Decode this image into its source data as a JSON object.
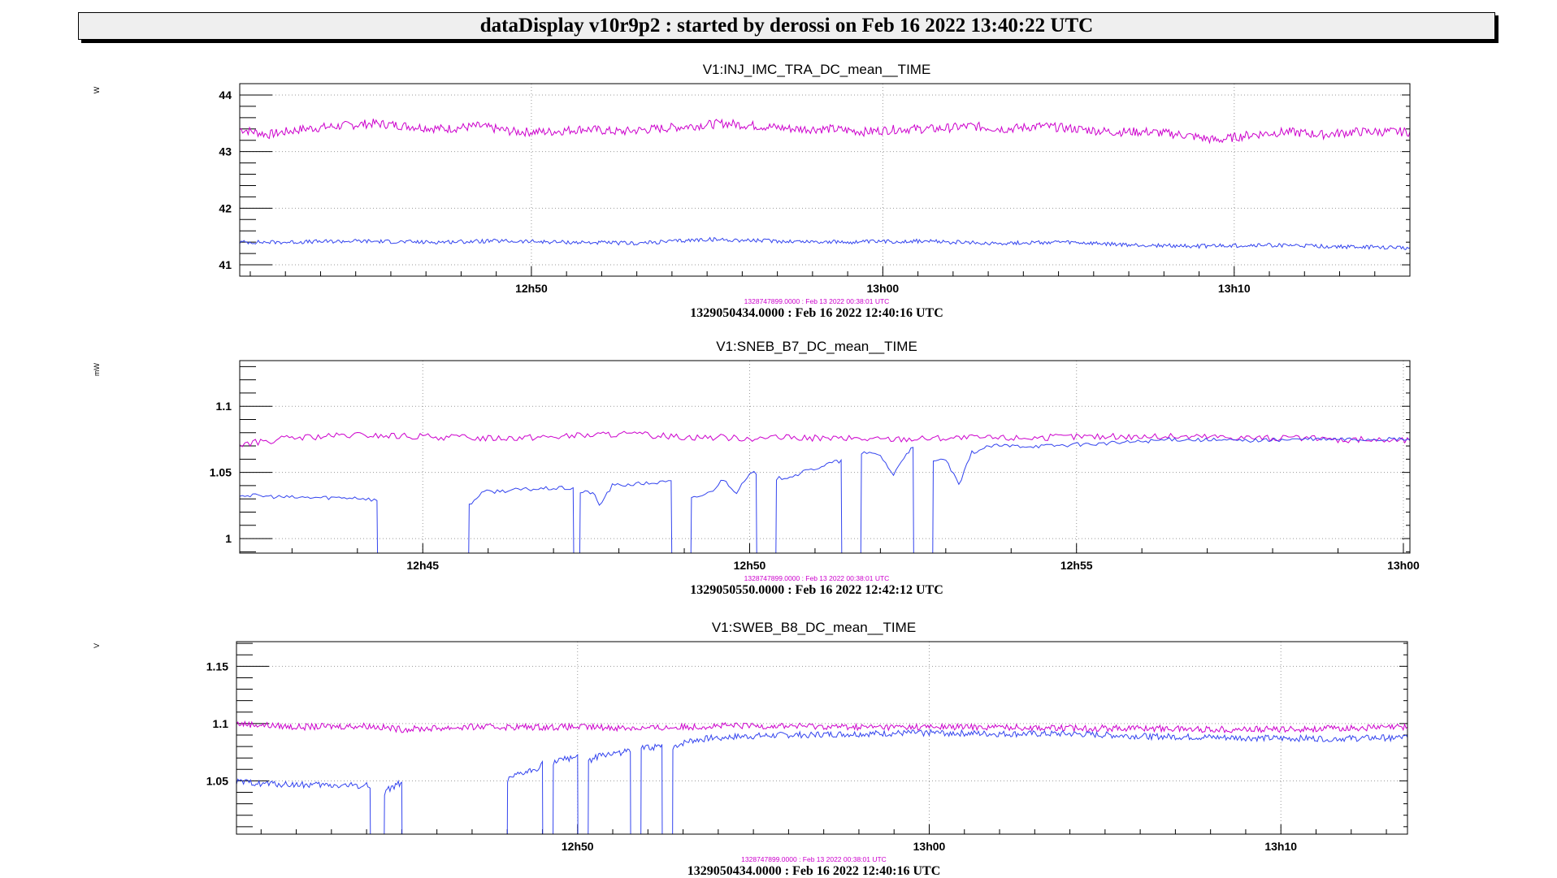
{
  "banner": "dataDisplay v10r9p2 : started by derossi on Feb 16 2022 13:40:22 UTC",
  "colors": {
    "ref_series": "#cc00cc",
    "cur_series": "#3344ee",
    "grid": "#999999"
  },
  "chart_data": [
    {
      "type": "line",
      "title": "V1:INJ_IMC_TRA_DC_mean__TIME",
      "ylabel": "W",
      "ylim": [
        40.8,
        44.2
      ],
      "yticks": [
        41,
        42,
        43,
        44
      ],
      "xlim_min": [
        41.7,
        75.0
      ],
      "xticks": [
        {
          "min": 50,
          "label": "12h50"
        },
        {
          "min": 60,
          "label": "13h00"
        },
        {
          "min": 70,
          "label": "13h10"
        }
      ],
      "ref_time_label": "1328747899.0000 : Feb 13 2022 00:38:01 UTC",
      "time_label": "1329050434.0000 : Feb 16 2022 12:40:16 UTC",
      "series": [
        {
          "role": "ref",
          "points": [
            [
              41.7,
              43.4
            ],
            [
              42.5,
              43.3
            ],
            [
              43.5,
              43.4
            ],
            [
              44.5,
              43.45
            ],
            [
              45.5,
              43.5
            ],
            [
              46.5,
              43.45
            ],
            [
              47.5,
              43.4
            ],
            [
              48.5,
              43.45
            ],
            [
              49.5,
              43.35
            ],
            [
              50.5,
              43.35
            ],
            [
              51.5,
              43.4
            ],
            [
              52.5,
              43.35
            ],
            [
              53.5,
              43.4
            ],
            [
              54.5,
              43.45
            ],
            [
              55.5,
              43.5
            ],
            [
              56.5,
              43.45
            ],
            [
              57.5,
              43.4
            ],
            [
              58.5,
              43.4
            ],
            [
              59.5,
              43.35
            ],
            [
              60.5,
              43.4
            ],
            [
              61.5,
              43.4
            ],
            [
              62.5,
              43.45
            ],
            [
              63.5,
              43.4
            ],
            [
              64.5,
              43.45
            ],
            [
              65.5,
              43.4
            ],
            [
              66.5,
              43.35
            ],
            [
              67.5,
              43.35
            ],
            [
              68.5,
              43.3
            ],
            [
              69.5,
              43.2
            ],
            [
              70.5,
              43.3
            ],
            [
              71.5,
              43.35
            ],
            [
              72.5,
              43.3
            ],
            [
              73.5,
              43.35
            ],
            [
              75.0,
              43.35
            ]
          ],
          "noise": 0.08
        },
        {
          "role": "cur",
          "points": [
            [
              41.7,
              41.4
            ],
            [
              43.0,
              41.4
            ],
            [
              45.0,
              41.42
            ],
            [
              47.0,
              41.4
            ],
            [
              49.0,
              41.42
            ],
            [
              51.0,
              41.4
            ],
            [
              53.0,
              41.38
            ],
            [
              55.0,
              41.45
            ],
            [
              57.0,
              41.42
            ],
            [
              59.0,
              41.4
            ],
            [
              61.0,
              41.42
            ],
            [
              63.0,
              41.38
            ],
            [
              65.0,
              41.4
            ],
            [
              67.0,
              41.35
            ],
            [
              69.0,
              41.33
            ],
            [
              71.0,
              41.35
            ],
            [
              73.0,
              41.32
            ],
            [
              75.0,
              41.3
            ]
          ],
          "noise": 0.035
        }
      ]
    },
    {
      "type": "line",
      "title": "V1:SNEB_B7_DC_mean__TIME",
      "ylabel": "mW",
      "ylim": [
        0.989,
        1.1345
      ],
      "yticks": [
        1.0,
        1.05,
        1.1
      ],
      "ytick_labels": [
        "1",
        "1.05",
        "1.1"
      ],
      "xlim_min": [
        42.2,
        60.1
      ],
      "xticks": [
        {
          "min": 45,
          "label": "12h45"
        },
        {
          "min": 50,
          "label": "12h50"
        },
        {
          "min": 55,
          "label": "12h55"
        },
        {
          "min": 60,
          "label": "13h00"
        }
      ],
      "ref_time_label": "1328747899.0000 : Feb 13 2022 00:38:01 UTC",
      "time_label": "1329050550.0000 : Feb 16 2022 12:42:12 UTC",
      "series": [
        {
          "role": "ref",
          "points": [
            [
              42.2,
              1.071
            ],
            [
              43.0,
              1.076
            ],
            [
              44.0,
              1.078
            ],
            [
              45.0,
              1.077
            ],
            [
              46.0,
              1.076
            ],
            [
              47.0,
              1.077
            ],
            [
              48.0,
              1.079
            ],
            [
              49.0,
              1.077
            ],
            [
              50.0,
              1.076
            ],
            [
              51.0,
              1.076
            ],
            [
              52.0,
              1.075
            ],
            [
              53.0,
              1.076
            ],
            [
              54.0,
              1.076
            ],
            [
              55.0,
              1.077
            ],
            [
              56.0,
              1.077
            ],
            [
              57.0,
              1.077
            ],
            [
              58.0,
              1.076
            ],
            [
              59.0,
              1.075
            ],
            [
              60.1,
              1.074
            ]
          ],
          "noise": 0.0025
        },
        {
          "role": "cur",
          "points": [
            [
              42.2,
              1.033
            ],
            [
              43.0,
              1.031
            ],
            [
              44.0,
              1.031
            ],
            [
              44.3,
              1.029
            ],
            [
              44.31,
              0.98
            ],
            [
              45.7,
              0.98
            ],
            [
              45.71,
              1.025
            ],
            [
              45.9,
              1.035
            ],
            [
              46.5,
              1.037
            ],
            [
              47.0,
              1.038
            ],
            [
              47.3,
              1.038
            ],
            [
              47.31,
              0.98
            ],
            [
              47.4,
              0.98
            ],
            [
              47.41,
              1.035
            ],
            [
              47.6,
              1.035
            ],
            [
              47.7,
              1.025
            ],
            [
              47.9,
              1.04
            ],
            [
              48.5,
              1.042
            ],
            [
              48.8,
              1.043
            ],
            [
              48.81,
              0.98
            ],
            [
              49.1,
              0.98
            ],
            [
              49.11,
              1.03
            ],
            [
              49.4,
              1.035
            ],
            [
              49.6,
              1.045
            ],
            [
              49.8,
              1.035
            ],
            [
              50.0,
              1.048
            ],
            [
              50.1,
              1.05
            ],
            [
              50.11,
              0.98
            ],
            [
              50.4,
              0.98
            ],
            [
              50.41,
              1.045
            ],
            [
              50.7,
              1.048
            ],
            [
              51.3,
              1.058
            ],
            [
              51.4,
              1.058
            ],
            [
              51.41,
              0.98
            ],
            [
              51.7,
              0.98
            ],
            [
              51.71,
              1.065
            ],
            [
              52.0,
              1.063
            ],
            [
              52.2,
              1.048
            ],
            [
              52.4,
              1.065
            ],
            [
              52.5,
              1.068
            ],
            [
              52.51,
              0.98
            ],
            [
              52.8,
              0.98
            ],
            [
              52.81,
              1.058
            ],
            [
              53.0,
              1.06
            ],
            [
              53.2,
              1.04
            ],
            [
              53.4,
              1.065
            ],
            [
              53.7,
              1.07
            ],
            [
              54.5,
              1.07
            ],
            [
              55.5,
              1.072
            ],
            [
              56.5,
              1.075
            ],
            [
              57.5,
              1.074
            ],
            [
              58.5,
              1.075
            ],
            [
              59.5,
              1.075
            ],
            [
              60.1,
              1.075
            ]
          ],
          "noise": 0.0015
        }
      ]
    },
    {
      "type": "line",
      "title": "V1:SWEB_B8_DC_mean__TIME",
      "ylabel": "V",
      "ylim": [
        1.0035,
        1.1715
      ],
      "yticks": [
        1.05,
        1.1,
        1.15
      ],
      "ytick_labels": [
        "1.05",
        "1.1",
        "1.15"
      ],
      "xlim_min": [
        40.3,
        73.6
      ],
      "xticks": [
        {
          "min": 50,
          "label": "12h50"
        },
        {
          "min": 60,
          "label": "13h00"
        },
        {
          "min": 70,
          "label": "13h10"
        }
      ],
      "ref_time_label": "1328747899.0000 : Feb 13 2022 00:38:01 UTC",
      "time_label": "1329050434.0000 : Feb 16 2022 12:40:16 UTC",
      "series": [
        {
          "role": "ref",
          "points": [
            [
              40.3,
              1.1
            ],
            [
              42.0,
              1.097
            ],
            [
              44.0,
              1.098
            ],
            [
              45.0,
              1.095
            ],
            [
              47.0,
              1.097
            ],
            [
              50.0,
              1.097
            ],
            [
              52.0,
              1.096
            ],
            [
              54.0,
              1.098
            ],
            [
              56.0,
              1.098
            ],
            [
              58.0,
              1.097
            ],
            [
              60.0,
              1.097
            ],
            [
              62.0,
              1.097
            ],
            [
              64.0,
              1.096
            ],
            [
              66.0,
              1.096
            ],
            [
              68.0,
              1.095
            ],
            [
              70.0,
              1.095
            ],
            [
              72.0,
              1.096
            ],
            [
              73.6,
              1.097
            ]
          ],
          "noise": 0.0028
        },
        {
          "role": "cur",
          "points": [
            [
              40.3,
              1.049
            ],
            [
              41.5,
              1.047
            ],
            [
              43.0,
              1.046
            ],
            [
              44.0,
              1.046
            ],
            [
              44.1,
              1.045
            ],
            [
              44.11,
              0.99
            ],
            [
              44.5,
              0.99
            ],
            [
              44.51,
              1.04
            ],
            [
              44.9,
              1.048
            ],
            [
              45.0,
              1.046
            ],
            [
              45.01,
              0.99
            ],
            [
              48.0,
              0.99
            ],
            [
              48.01,
              1.05
            ],
            [
              48.3,
              1.055
            ],
            [
              48.8,
              1.06
            ],
            [
              49.0,
              1.065
            ],
            [
              49.01,
              0.99
            ],
            [
              49.3,
              0.99
            ],
            [
              49.31,
              1.066
            ],
            [
              49.8,
              1.07
            ],
            [
              50.0,
              1.072
            ],
            [
              50.01,
              0.99
            ],
            [
              50.3,
              0.99
            ],
            [
              50.31,
              1.068
            ],
            [
              50.8,
              1.073
            ],
            [
              51.5,
              1.076
            ],
            [
              51.51,
              0.99
            ],
            [
              51.8,
              0.99
            ],
            [
              51.81,
              1.078
            ],
            [
              52.4,
              1.08
            ],
            [
              52.41,
              0.99
            ],
            [
              52.7,
              0.99
            ],
            [
              52.71,
              1.08
            ],
            [
              53.2,
              1.085
            ],
            [
              54.0,
              1.088
            ],
            [
              56.0,
              1.09
            ],
            [
              58.0,
              1.091
            ],
            [
              60.0,
              1.092
            ],
            [
              62.0,
              1.091
            ],
            [
              64.0,
              1.091
            ],
            [
              66.0,
              1.089
            ],
            [
              68.0,
              1.088
            ],
            [
              70.0,
              1.087
            ],
            [
              72.0,
              1.087
            ],
            [
              73.6,
              1.088
            ]
          ],
          "noise": 0.0028
        }
      ]
    }
  ]
}
